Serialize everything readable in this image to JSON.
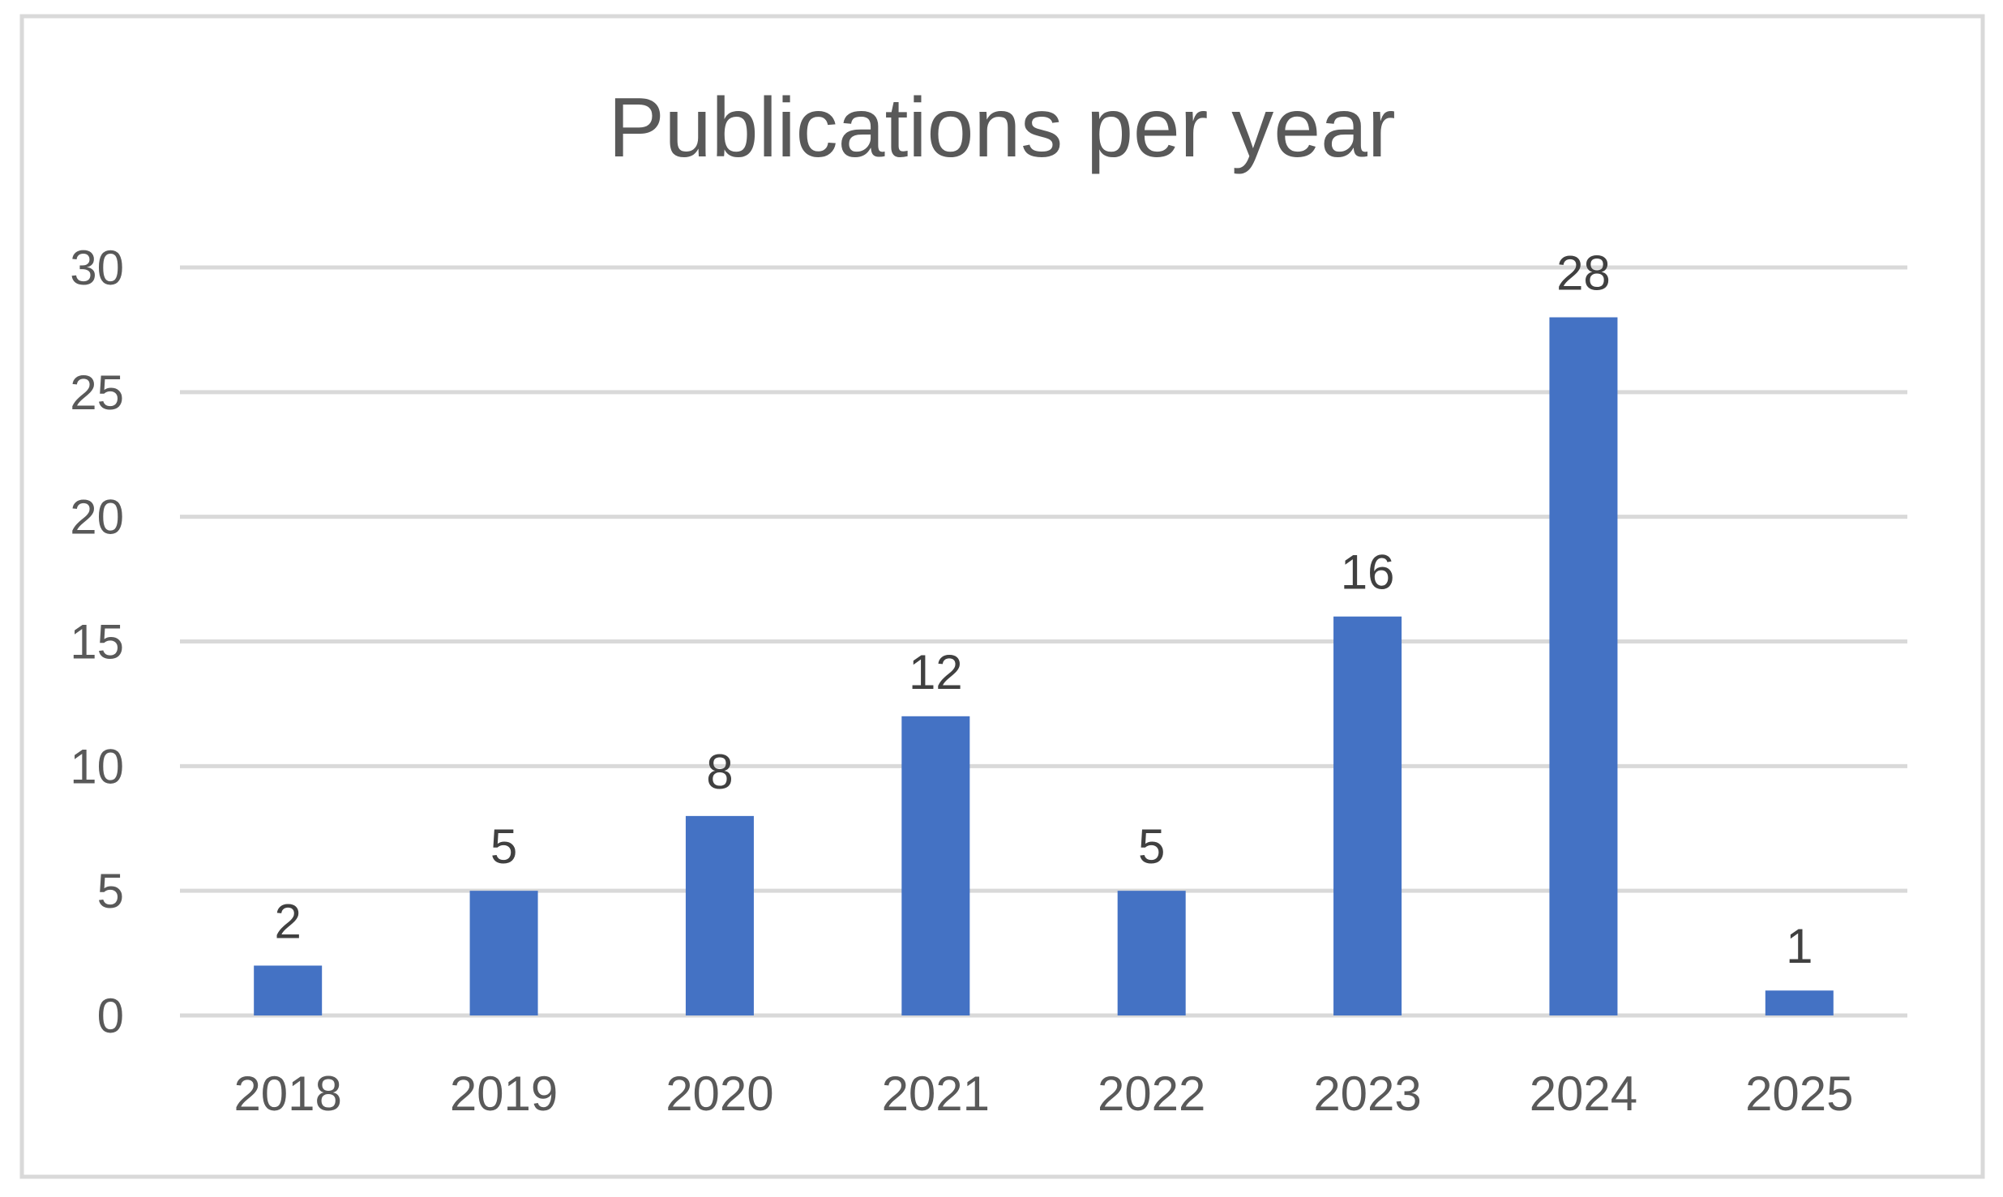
{
  "chart_data": {
    "type": "bar",
    "title": "Publications per year",
    "xlabel": "",
    "ylabel": "",
    "categories": [
      "2018",
      "2019",
      "2020",
      "2021",
      "2022",
      "2023",
      "2024",
      "2025"
    ],
    "values": [
      2,
      5,
      8,
      12,
      5,
      16,
      28,
      1
    ],
    "data_labels": [
      "2",
      "5",
      "8",
      "12",
      "5",
      "16",
      "28",
      "1"
    ],
    "yticks": [
      "0",
      "5",
      "10",
      "15",
      "20",
      "25",
      "30"
    ],
    "ylim": [
      0,
      30
    ],
    "grid": true,
    "legend": "none",
    "colors": {
      "bar": "#4472C4",
      "grid": "#D9D9D9",
      "frame": "#D9D9D9",
      "text": "#595959",
      "data_label": "#404040"
    }
  }
}
